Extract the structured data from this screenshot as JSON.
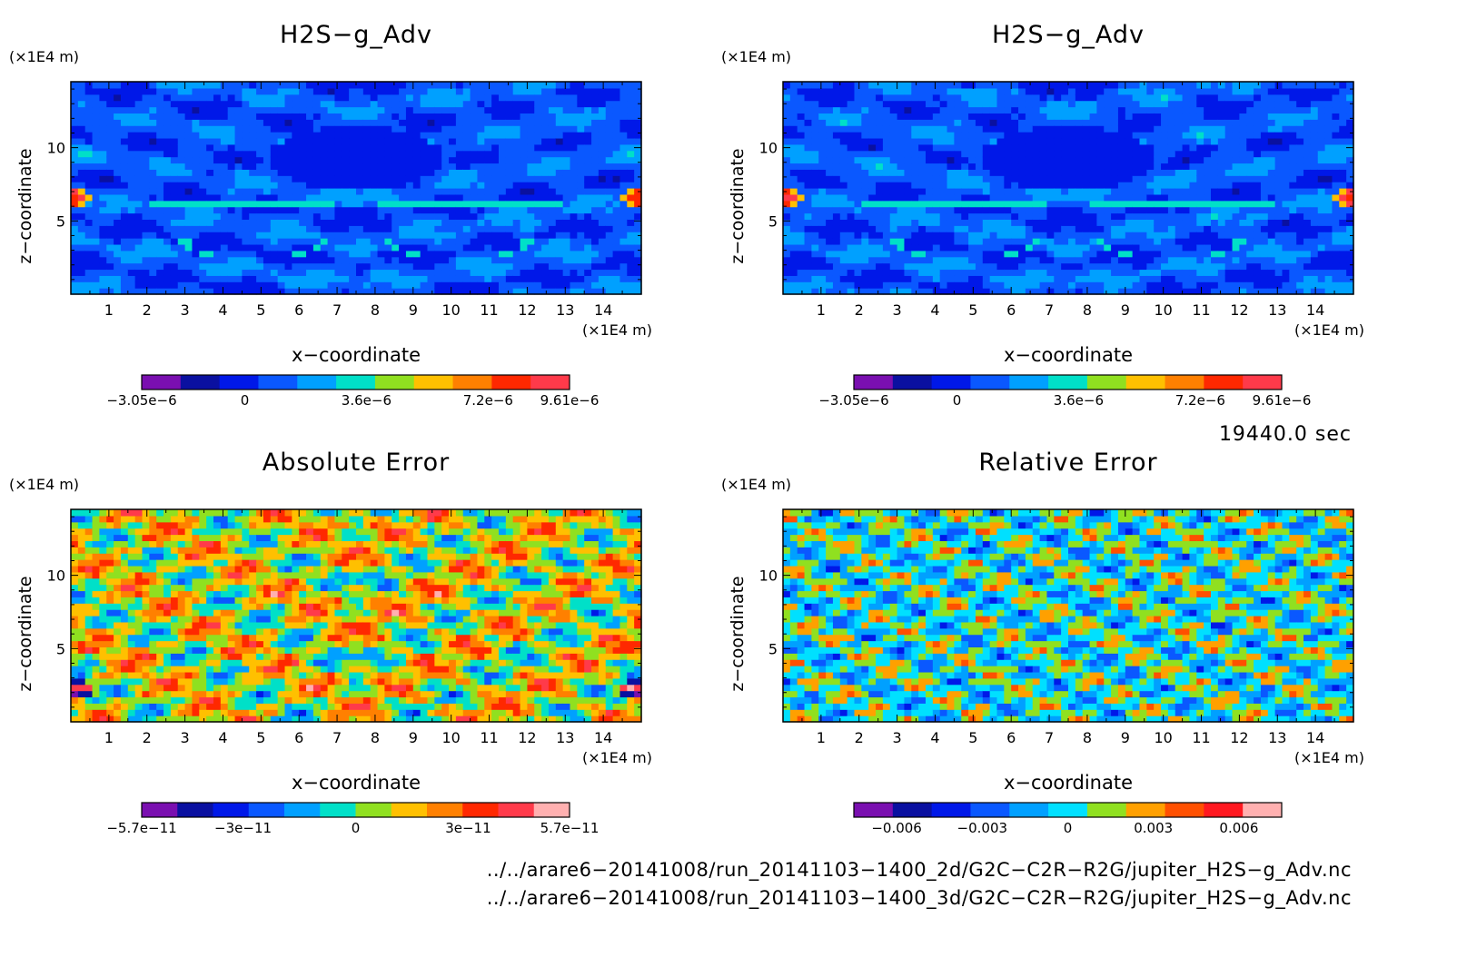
{
  "chart_data": [
    {
      "type": "heatmap",
      "title": "H2S−g_Adv",
      "xlabel": "x−coordinate",
      "ylabel": "z−coordinate",
      "x_unit": "(×1E4 m)",
      "y_unit": "(×1E4 m)",
      "xlim": [
        0,
        15
      ],
      "ylim": [
        0,
        14.5
      ],
      "xticks": [
        "1",
        "2",
        "3",
        "4",
        "5",
        "6",
        "7",
        "8",
        "9",
        "10",
        "11",
        "12",
        "13",
        "14"
      ],
      "yticks": [
        "5",
        "10"
      ],
      "colorbar": {
        "colors": [
          "#7a0fb0",
          "#0a10a0",
          "#0018e8",
          "#0a58ff",
          "#00a0ff",
          "#00e0c8",
          "#90e020",
          "#ffc000",
          "#ff8000",
          "#ff2800",
          "#ff3a4a"
        ],
        "labels": [
          "−3.05e−6",
          "0",
          "3.6e−6",
          "7.2e−6",
          "9.61e−6"
        ],
        "label_values": [
          -3.05e-06,
          0,
          3.6e-06,
          7.2e-06,
          9.61e-06
        ],
        "range": [
          -3.05e-06,
          9.61e-06
        ]
      }
    },
    {
      "type": "heatmap",
      "title": "H2S−g_Adv",
      "xlabel": "x−coordinate",
      "ylabel": "z−coordinate",
      "x_unit": "(×1E4 m)",
      "y_unit": "(×1E4 m)",
      "xlim": [
        0,
        15
      ],
      "ylim": [
        0,
        14.5
      ],
      "xticks": [
        "1",
        "2",
        "3",
        "4",
        "5",
        "6",
        "7",
        "8",
        "9",
        "10",
        "11",
        "12",
        "13",
        "14"
      ],
      "yticks": [
        "5",
        "10"
      ],
      "colorbar": {
        "colors": [
          "#7a0fb0",
          "#0a10a0",
          "#0018e8",
          "#0a58ff",
          "#00a0ff",
          "#00e0c8",
          "#90e020",
          "#ffc000",
          "#ff8000",
          "#ff2800",
          "#ff3a4a"
        ],
        "labels": [
          "−3.05e−6",
          "0",
          "3.6e−6",
          "7.2e−6",
          "9.61e−6"
        ],
        "label_values": [
          -3.05e-06,
          0,
          3.6e-06,
          7.2e-06,
          9.61e-06
        ],
        "range": [
          -3.05e-06,
          9.61e-06
        ]
      }
    },
    {
      "type": "heatmap",
      "title": "Absolute Error",
      "xlabel": "x−coordinate",
      "ylabel": "z−coordinate",
      "x_unit": "(×1E4 m)",
      "y_unit": "(×1E4 m)",
      "xlim": [
        0,
        15
      ],
      "ylim": [
        0,
        14.5
      ],
      "xticks": [
        "1",
        "2",
        "3",
        "4",
        "5",
        "6",
        "7",
        "8",
        "9",
        "10",
        "11",
        "12",
        "13",
        "14"
      ],
      "yticks": [
        "5",
        "10"
      ],
      "colorbar": {
        "colors": [
          "#7a0fb0",
          "#0a10a0",
          "#0018e8",
          "#0a58ff",
          "#00a0ff",
          "#00e0c8",
          "#90e020",
          "#ffc000",
          "#ff8000",
          "#ff2800",
          "#ff3a4a",
          "#ffb0b0"
        ],
        "labels": [
          "−5.7e−11",
          "−3e−11",
          "0",
          "3e−11",
          "5.7e−11"
        ],
        "label_values": [
          -5.7e-11,
          -3e-11,
          0,
          3e-11,
          5.7e-11
        ],
        "range": [
          -5.7e-11,
          5.7e-11
        ]
      }
    },
    {
      "type": "heatmap",
      "title": "Relative Error",
      "xlabel": "x−coordinate",
      "ylabel": "z−coordinate",
      "x_unit": "(×1E4 m)",
      "y_unit": "(×1E4 m)",
      "xlim": [
        0,
        15
      ],
      "ylim": [
        0,
        14.5
      ],
      "xticks": [
        "1",
        "2",
        "3",
        "4",
        "5",
        "6",
        "7",
        "8",
        "9",
        "10",
        "11",
        "12",
        "13",
        "14"
      ],
      "yticks": [
        "5",
        "10"
      ],
      "colorbar": {
        "colors": [
          "#7a0fb0",
          "#0a10a0",
          "#0018e8",
          "#0a58ff",
          "#00a0ff",
          "#00e0ff",
          "#90e020",
          "#ffa000",
          "#ff5000",
          "#ff1820",
          "#ffb0b0"
        ],
        "labels": [
          "−0.006",
          "−0.003",
          "0",
          "0.003",
          "0.006"
        ],
        "label_values": [
          -0.006,
          -0.003,
          0,
          0.003,
          0.006
        ],
        "range": [
          -0.0075,
          0.0075
        ]
      }
    }
  ],
  "time_label": "19440.0 sec",
  "file_paths": [
    "../../arare6−20141008/run_20141103−1400_2d/G2C−C2R−R2G/jupiter_H2S−g_Adv.nc",
    "../../arare6−20141008/run_20141103−1400_3d/G2C−C2R−R2G/jupiter_H2S−g_Adv.nc"
  ]
}
